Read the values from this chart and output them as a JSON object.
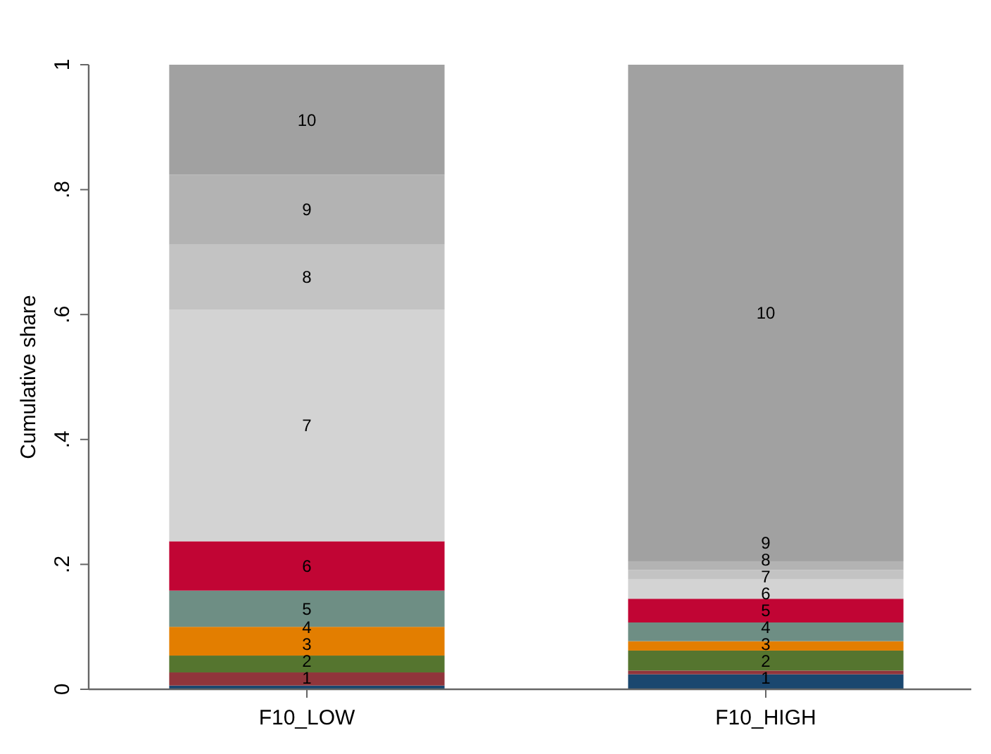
{
  "chart_data": {
    "type": "bar",
    "stacked": true,
    "ylabel": "Cumulative share",
    "categories": [
      "F10_LOW",
      "F10_HIGH"
    ],
    "ylim": [
      0,
      1
    ],
    "yticks": [
      0,
      {
        "value": 0.2,
        "label": ".2"
      },
      {
        "value": 0.4,
        "label": ".4"
      },
      {
        "value": 0.6,
        "label": ".6"
      },
      {
        "value": 0.8,
        "label": ".8"
      },
      1
    ],
    "grid": false,
    "series": [
      {
        "name": "1",
        "color": "#1a476f",
        "values": [
          0.006,
          0.024
        ]
      },
      {
        "name": "2",
        "color": "#90353b",
        "values": [
          0.021,
          0.006
        ]
      },
      {
        "name": "3",
        "color": "#55752f",
        "values": [
          0.027,
          0.032
        ]
      },
      {
        "name": "4",
        "color": "#e37e00",
        "values": [
          0.046,
          0.015
        ]
      },
      {
        "name": "5",
        "color": "#6e8e84",
        "values": [
          0.058,
          0.03
        ]
      },
      {
        "name": "6",
        "color": "#c10534",
        "values": [
          0.079,
          0.038
        ]
      },
      {
        "name": "7",
        "color": "#d3d3d3",
        "values": [
          0.371,
          0.031
        ]
      },
      {
        "name": "8",
        "color": "#c3c3c3",
        "values": [
          0.104,
          0.015
        ]
      },
      {
        "name": "9",
        "color": "#b3b3b3",
        "values": [
          0.112,
          0.014
        ]
      },
      {
        "name": "10",
        "color": "#a1a1a1",
        "values": [
          0.176,
          0.795
        ]
      }
    ]
  }
}
